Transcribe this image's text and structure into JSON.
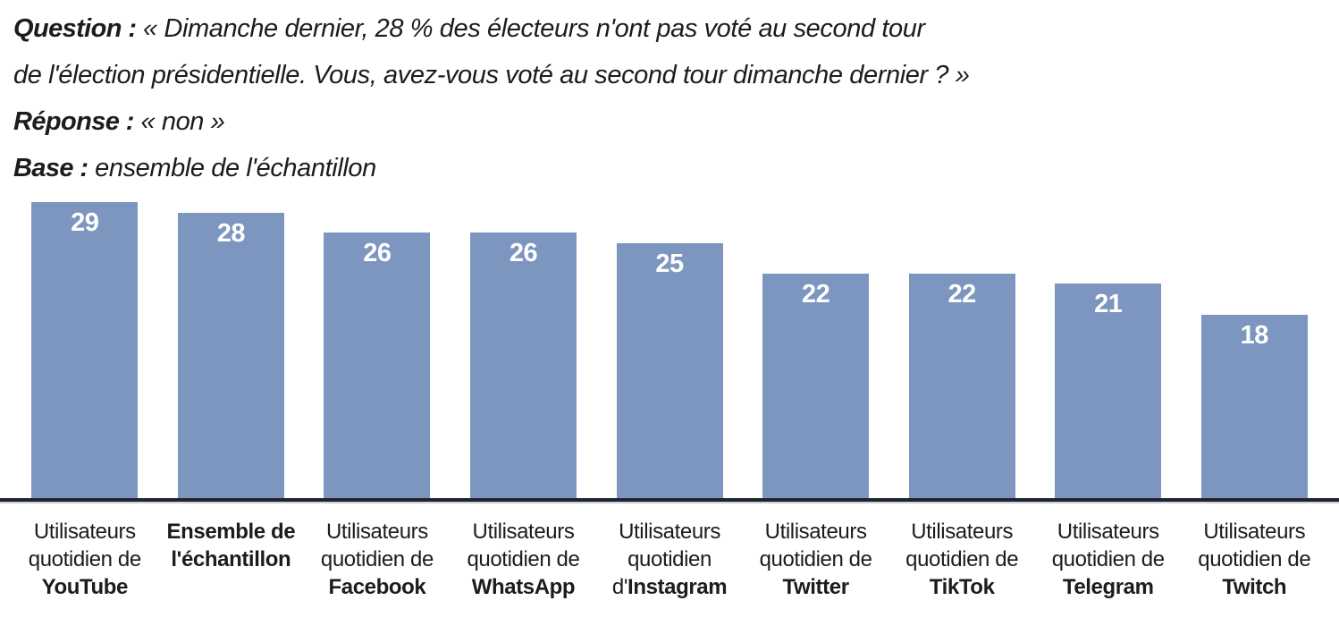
{
  "header": {
    "lines": [
      {
        "bold": "Question :",
        "rest": " « Dimanche dernier, 28 % des électeurs n'ont pas voté au second tour"
      },
      {
        "bold": "",
        "rest": "de l'élection présidentielle. Vous, avez-vous voté au second tour dimanche dernier ? »"
      },
      {
        "bold": "Réponse :",
        "rest": " « non »"
      },
      {
        "bold": "Base :",
        "rest": " ensemble de l'échantillon"
      }
    ]
  },
  "chart_data": {
    "type": "bar",
    "title": "",
    "categories": [
      "Utilisateurs quotidien de YouTube",
      "Ensemble de l'échantillon",
      "Utilisateurs quotidien de Facebook",
      "Utilisateurs quotidien de WhatsApp",
      "Utilisateurs quotidien d'Instagram",
      "Utilisateurs quotidien de Twitter",
      "Utilisateurs quotidien de TikTok",
      "Utilisateurs quotidien de Telegram",
      "Utilisateurs quotidien de Twitch"
    ],
    "values": [
      29,
      28,
      26,
      26,
      25,
      22,
      22,
      21,
      18
    ],
    "ylim": [
      0,
      29
    ],
    "xlabel": "",
    "ylabel": "",
    "gridlines": false,
    "legend": false,
    "value_labels_shown": true,
    "bar_color": "#7c96c0",
    "value_label_color": "#ffffff",
    "axis_line_color": "#21242c",
    "axis_shadow_color": "#c8d1dd"
  },
  "bars": [
    {
      "value": 29,
      "label_lines": [
        {
          "pre": "",
          "text": "Utilisateurs",
          "bold": false
        },
        {
          "pre": "",
          "text": "quotidien de",
          "bold": false
        },
        {
          "pre": "",
          "text": "YouTube",
          "bold": true
        }
      ]
    },
    {
      "value": 28,
      "label_lines": [
        {
          "pre": "",
          "text": "Ensemble de",
          "bold": true
        },
        {
          "pre": "",
          "text": "l'échantillon",
          "bold": true
        }
      ]
    },
    {
      "value": 26,
      "label_lines": [
        {
          "pre": "",
          "text": "Utilisateurs",
          "bold": false
        },
        {
          "pre": "",
          "text": "quotidien de",
          "bold": false
        },
        {
          "pre": "",
          "text": "Facebook",
          "bold": true
        }
      ]
    },
    {
      "value": 26,
      "label_lines": [
        {
          "pre": "",
          "text": "Utilisateurs",
          "bold": false
        },
        {
          "pre": "",
          "text": "quotidien de",
          "bold": false
        },
        {
          "pre": "",
          "text": "WhatsApp",
          "bold": true
        }
      ]
    },
    {
      "value": 25,
      "label_lines": [
        {
          "pre": "",
          "text": "Utilisateurs",
          "bold": false
        },
        {
          "pre": "",
          "text": "quotidien",
          "bold": false
        },
        {
          "pre": "d'",
          "text": "Instagram",
          "bold": true
        }
      ]
    },
    {
      "value": 22,
      "label_lines": [
        {
          "pre": "",
          "text": "Utilisateurs",
          "bold": false
        },
        {
          "pre": "",
          "text": "quotidien de",
          "bold": false
        },
        {
          "pre": "",
          "text": "Twitter",
          "bold": true
        }
      ]
    },
    {
      "value": 22,
      "label_lines": [
        {
          "pre": "",
          "text": "Utilisateurs",
          "bold": false
        },
        {
          "pre": "",
          "text": "quotidien de",
          "bold": false
        },
        {
          "pre": "",
          "text": "TikTok",
          "bold": true
        }
      ]
    },
    {
      "value": 21,
      "label_lines": [
        {
          "pre": "",
          "text": "Utilisateurs",
          "bold": false
        },
        {
          "pre": "",
          "text": "quotidien de",
          "bold": false
        },
        {
          "pre": "",
          "text": "Telegram",
          "bold": true
        }
      ]
    },
    {
      "value": 18,
      "label_lines": [
        {
          "pre": "",
          "text": "Utilisateurs",
          "bold": false
        },
        {
          "pre": "",
          "text": "quotidien de",
          "bold": false
        },
        {
          "pre": "",
          "text": "Twitch",
          "bold": true
        }
      ]
    }
  ]
}
